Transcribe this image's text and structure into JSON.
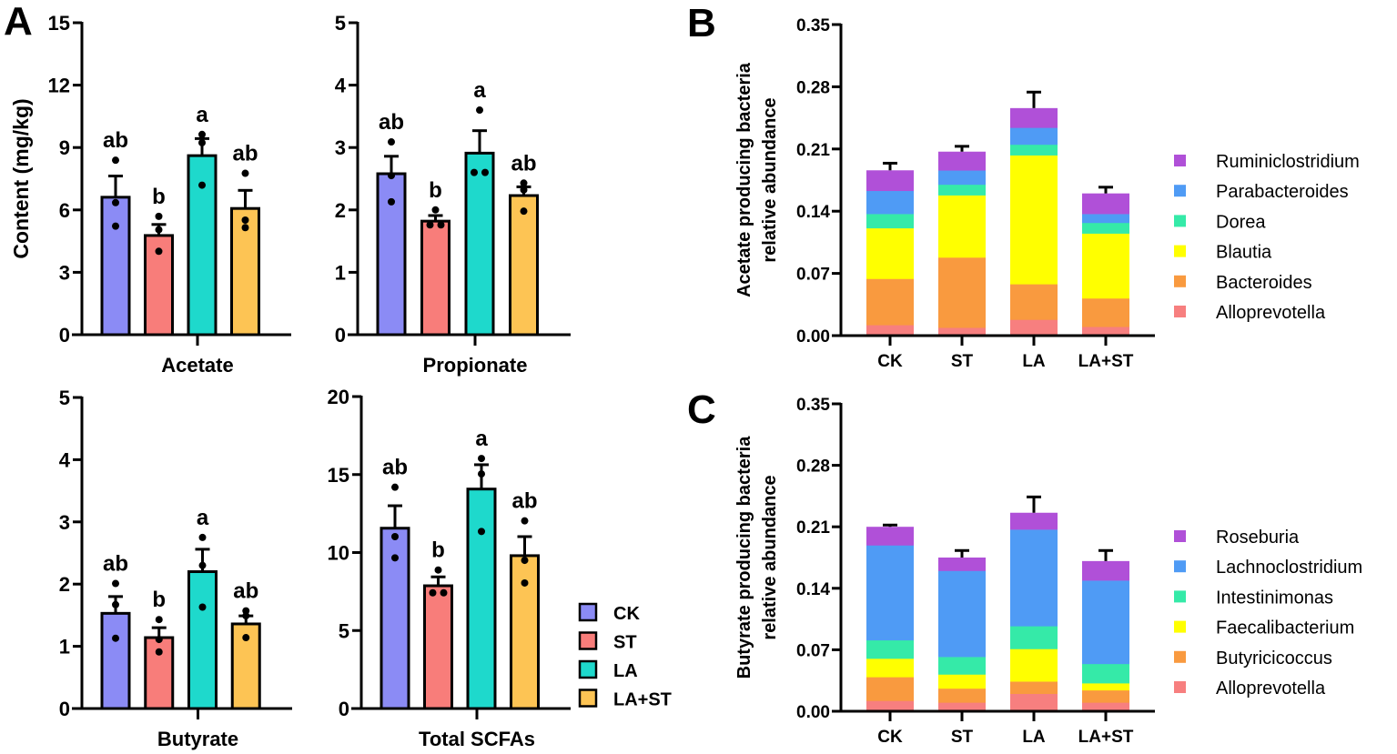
{
  "panel_labels": [
    "A",
    "B",
    "C"
  ],
  "group_legend": {
    "items": [
      {
        "label": "CK",
        "color": "#8b8bf5"
      },
      {
        "label": "ST",
        "color": "#f87d7a"
      },
      {
        "label": "LA",
        "color": "#1ed9cc"
      },
      {
        "label": "LA+ST",
        "color": "#fdc454"
      }
    ]
  },
  "chart_data": [
    {
      "type": "bar",
      "panel": "A",
      "xlabel": "Acetate",
      "ylabel": "Content (mg/kg)",
      "categories": [
        "CK",
        "ST",
        "LA",
        "LA+ST"
      ],
      "ylim": [
        0,
        15
      ],
      "yticks": [
        "0",
        "3",
        "6",
        "9",
        "12",
        "15"
      ],
      "means": [
        6.61,
        4.77,
        8.61,
        6.07
      ],
      "sem": [
        1.02,
        0.53,
        0.82,
        0.87
      ],
      "points": [
        [
          8.39,
          6.35,
          5.22
        ],
        [
          5.69,
          5.05,
          4.01
        ],
        [
          9.63,
          9.23,
          7.19
        ],
        [
          7.76,
          5.51,
          5.15
        ]
      ],
      "letters": [
        "ab",
        "b",
        "a",
        "ab"
      ]
    },
    {
      "type": "bar",
      "panel": "A",
      "xlabel": "Propionate",
      "categories": [
        "CK",
        "ST",
        "LA",
        "LA+ST"
      ],
      "ylim": [
        0,
        5
      ],
      "yticks": [
        "0",
        "1",
        "2",
        "3",
        "4",
        "5"
      ],
      "means": [
        2.58,
        1.82,
        2.91,
        2.23
      ],
      "sem": [
        0.28,
        0.09,
        0.36,
        0.14
      ],
      "points": [
        [
          3.09,
          2.55,
          2.13
        ],
        [
          2.0,
          1.76,
          1.76
        ],
        [
          3.6,
          2.6,
          2.6
        ],
        [
          2.43,
          2.32,
          1.98
        ]
      ],
      "letters": [
        "ab",
        "b",
        "a",
        "ab"
      ]
    },
    {
      "type": "bar",
      "panel": "A",
      "xlabel": "Butyrate",
      "categories": [
        "CK",
        "ST",
        "LA",
        "LA+ST"
      ],
      "ylim": [
        0,
        5
      ],
      "yticks": [
        "0",
        "1",
        "2",
        "3",
        "4",
        "5"
      ],
      "means": [
        1.53,
        1.14,
        2.2,
        1.36
      ],
      "sem": [
        0.27,
        0.16,
        0.36,
        0.13
      ],
      "points": [
        [
          2.01,
          1.67,
          1.13
        ],
        [
          1.43,
          1.11,
          0.91
        ],
        [
          2.75,
          2.3,
          1.63
        ],
        [
          1.57,
          1.49,
          1.14
        ]
      ],
      "letters": [
        "ab",
        "b",
        "a",
        "ab"
      ]
    },
    {
      "type": "bar",
      "panel": "A",
      "xlabel": "Total SCFAs",
      "categories": [
        "CK",
        "ST",
        "LA",
        "LA+ST"
      ],
      "ylim": [
        0,
        20
      ],
      "yticks": [
        "0",
        "5",
        "10",
        "15",
        "20"
      ],
      "means": [
        11.56,
        7.87,
        14.07,
        9.8
      ],
      "sem": [
        1.44,
        0.57,
        1.56,
        1.22
      ],
      "points": [
        [
          14.19,
          11.02,
          9.66
        ],
        [
          8.88,
          7.42,
          7.42
        ],
        [
          16.03,
          15.04,
          11.35
        ],
        [
          12.03,
          9.5,
          8.05
        ]
      ],
      "letters": [
        "ab",
        "b",
        "a",
        "ab"
      ]
    },
    {
      "type": "stacked_bar",
      "panel": "B",
      "ylabel": [
        "Acetate producing bacteria",
        "relative abundance"
      ],
      "categories": [
        "CK",
        "ST",
        "LA",
        "LA+ST"
      ],
      "ylim": [
        0,
        0.35
      ],
      "yticks": [
        "0.00",
        "0.07",
        "0.14",
        "0.21",
        "0.28",
        "0.35"
      ],
      "series": [
        {
          "name": "Alloprevotella",
          "color": "#f77f7f",
          "values": [
            0.012,
            0.009,
            0.018,
            0.01
          ]
        },
        {
          "name": "Bacteroides",
          "color": "#f99a3f",
          "values": [
            0.052,
            0.079,
            0.04,
            0.032
          ]
        },
        {
          "name": "Blautia",
          "color": "#ffff00",
          "values": [
            0.057,
            0.07,
            0.145,
            0.073
          ]
        },
        {
          "name": "Dorea",
          "color": "#35eaa8",
          "values": [
            0.016,
            0.012,
            0.012,
            0.012
          ]
        },
        {
          "name": "Parabacteroides",
          "color": "#4f9bf5",
          "values": [
            0.026,
            0.016,
            0.019,
            0.01
          ]
        },
        {
          "name": "Ruminiclostridium",
          "color": "#b050d8",
          "values": [
            0.023,
            0.021,
            0.022,
            0.023
          ]
        }
      ],
      "sem": [
        0.008,
        0.006,
        0.018,
        0.007
      ]
    },
    {
      "type": "stacked_bar",
      "panel": "C",
      "ylabel": [
        "Butyrate producing bacteria",
        "relative abundance"
      ],
      "categories": [
        "CK",
        "ST",
        "LA",
        "LA+ST"
      ],
      "ylim": [
        0,
        0.35
      ],
      "yticks": [
        "0.00",
        "0.07",
        "0.14",
        "0.21",
        "0.28",
        "0.35"
      ],
      "series": [
        {
          "name": "Alloprevotella",
          "color": "#f77f7f",
          "values": [
            0.012,
            0.01,
            0.02,
            0.01
          ]
        },
        {
          "name": "Butyricicoccus",
          "color": "#f99a3f",
          "values": [
            0.027,
            0.016,
            0.014,
            0.014
          ]
        },
        {
          "name": "Faecalibacterium",
          "color": "#ffff00",
          "values": [
            0.021,
            0.016,
            0.037,
            0.008
          ]
        },
        {
          "name": "Intestinimonas",
          "color": "#35eaa8",
          "values": [
            0.021,
            0.02,
            0.026,
            0.022
          ]
        },
        {
          "name": "Lachnoclostridium",
          "color": "#4f9bf5",
          "values": [
            0.108,
            0.098,
            0.11,
            0.095
          ]
        },
        {
          "name": "Roseburia",
          "color": "#b050d8",
          "values": [
            0.021,
            0.015,
            0.019,
            0.022
          ]
        }
      ],
      "sem": [
        0.002,
        0.008,
        0.018,
        0.012
      ]
    }
  ]
}
